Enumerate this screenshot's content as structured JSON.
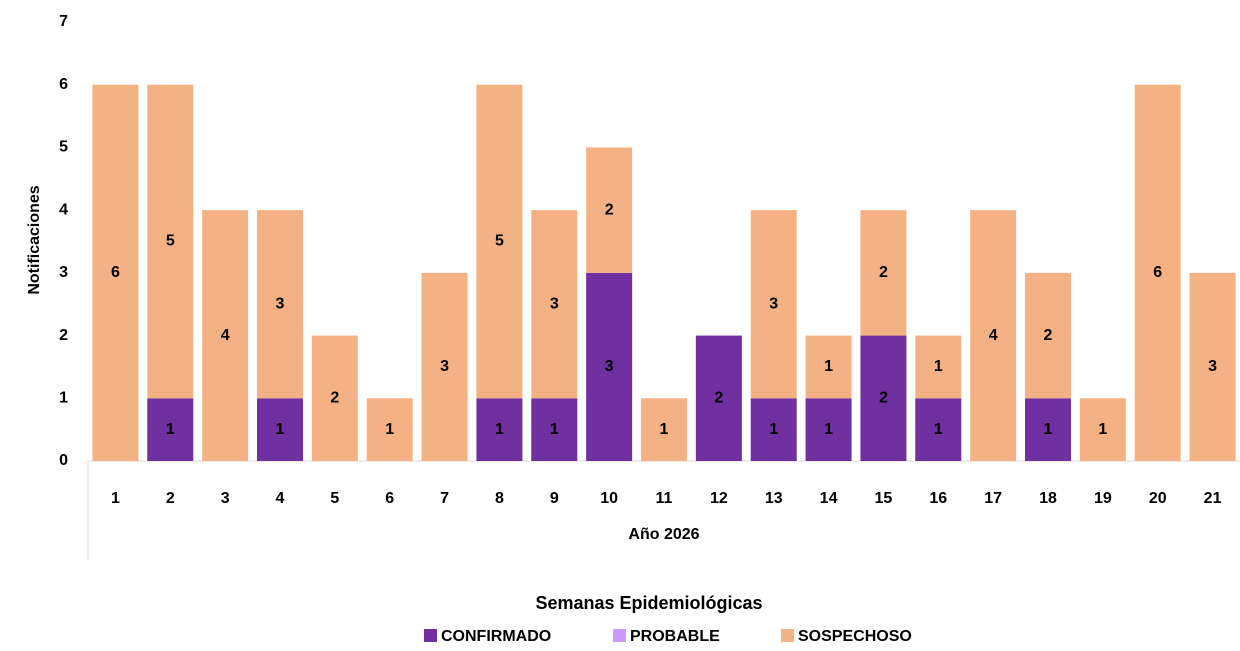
{
  "chart_data": {
    "type": "bar",
    "stacked": true,
    "y_label": "Notificaciones",
    "x_label": "Año 2026",
    "x_group_label": "Semanas Epidemiológicas",
    "categories": [
      "1",
      "2",
      "3",
      "4",
      "5",
      "6",
      "7",
      "8",
      "9",
      "10",
      "11",
      "12",
      "13",
      "14",
      "15",
      "16",
      "17",
      "18",
      "19",
      "20",
      "21"
    ],
    "series": [
      {
        "name": "CONFIRMADO",
        "color": "#7030a0",
        "values": [
          0,
          1,
          0,
          1,
          0,
          0,
          0,
          1,
          1,
          3,
          0,
          2,
          1,
          1,
          2,
          1,
          0,
          1,
          0,
          0,
          0
        ]
      },
      {
        "name": "PROBABLE",
        "color": "#cc99ff",
        "values": [
          0,
          0,
          0,
          0,
          0,
          0,
          0,
          0,
          0,
          0,
          0,
          0,
          0,
          0,
          0,
          0,
          0,
          0,
          0,
          0,
          0
        ]
      },
      {
        "name": "SOSPECHOSO",
        "color": "#f4b183",
        "values": [
          6,
          5,
          4,
          3,
          2,
          1,
          3,
          5,
          3,
          2,
          1,
          0,
          3,
          1,
          2,
          1,
          4,
          2,
          1,
          6,
          3
        ]
      }
    ],
    "ylim": [
      0,
      7
    ],
    "yticks": [
      0,
      1,
      2,
      3,
      4,
      5,
      6,
      7
    ],
    "grid": false
  }
}
